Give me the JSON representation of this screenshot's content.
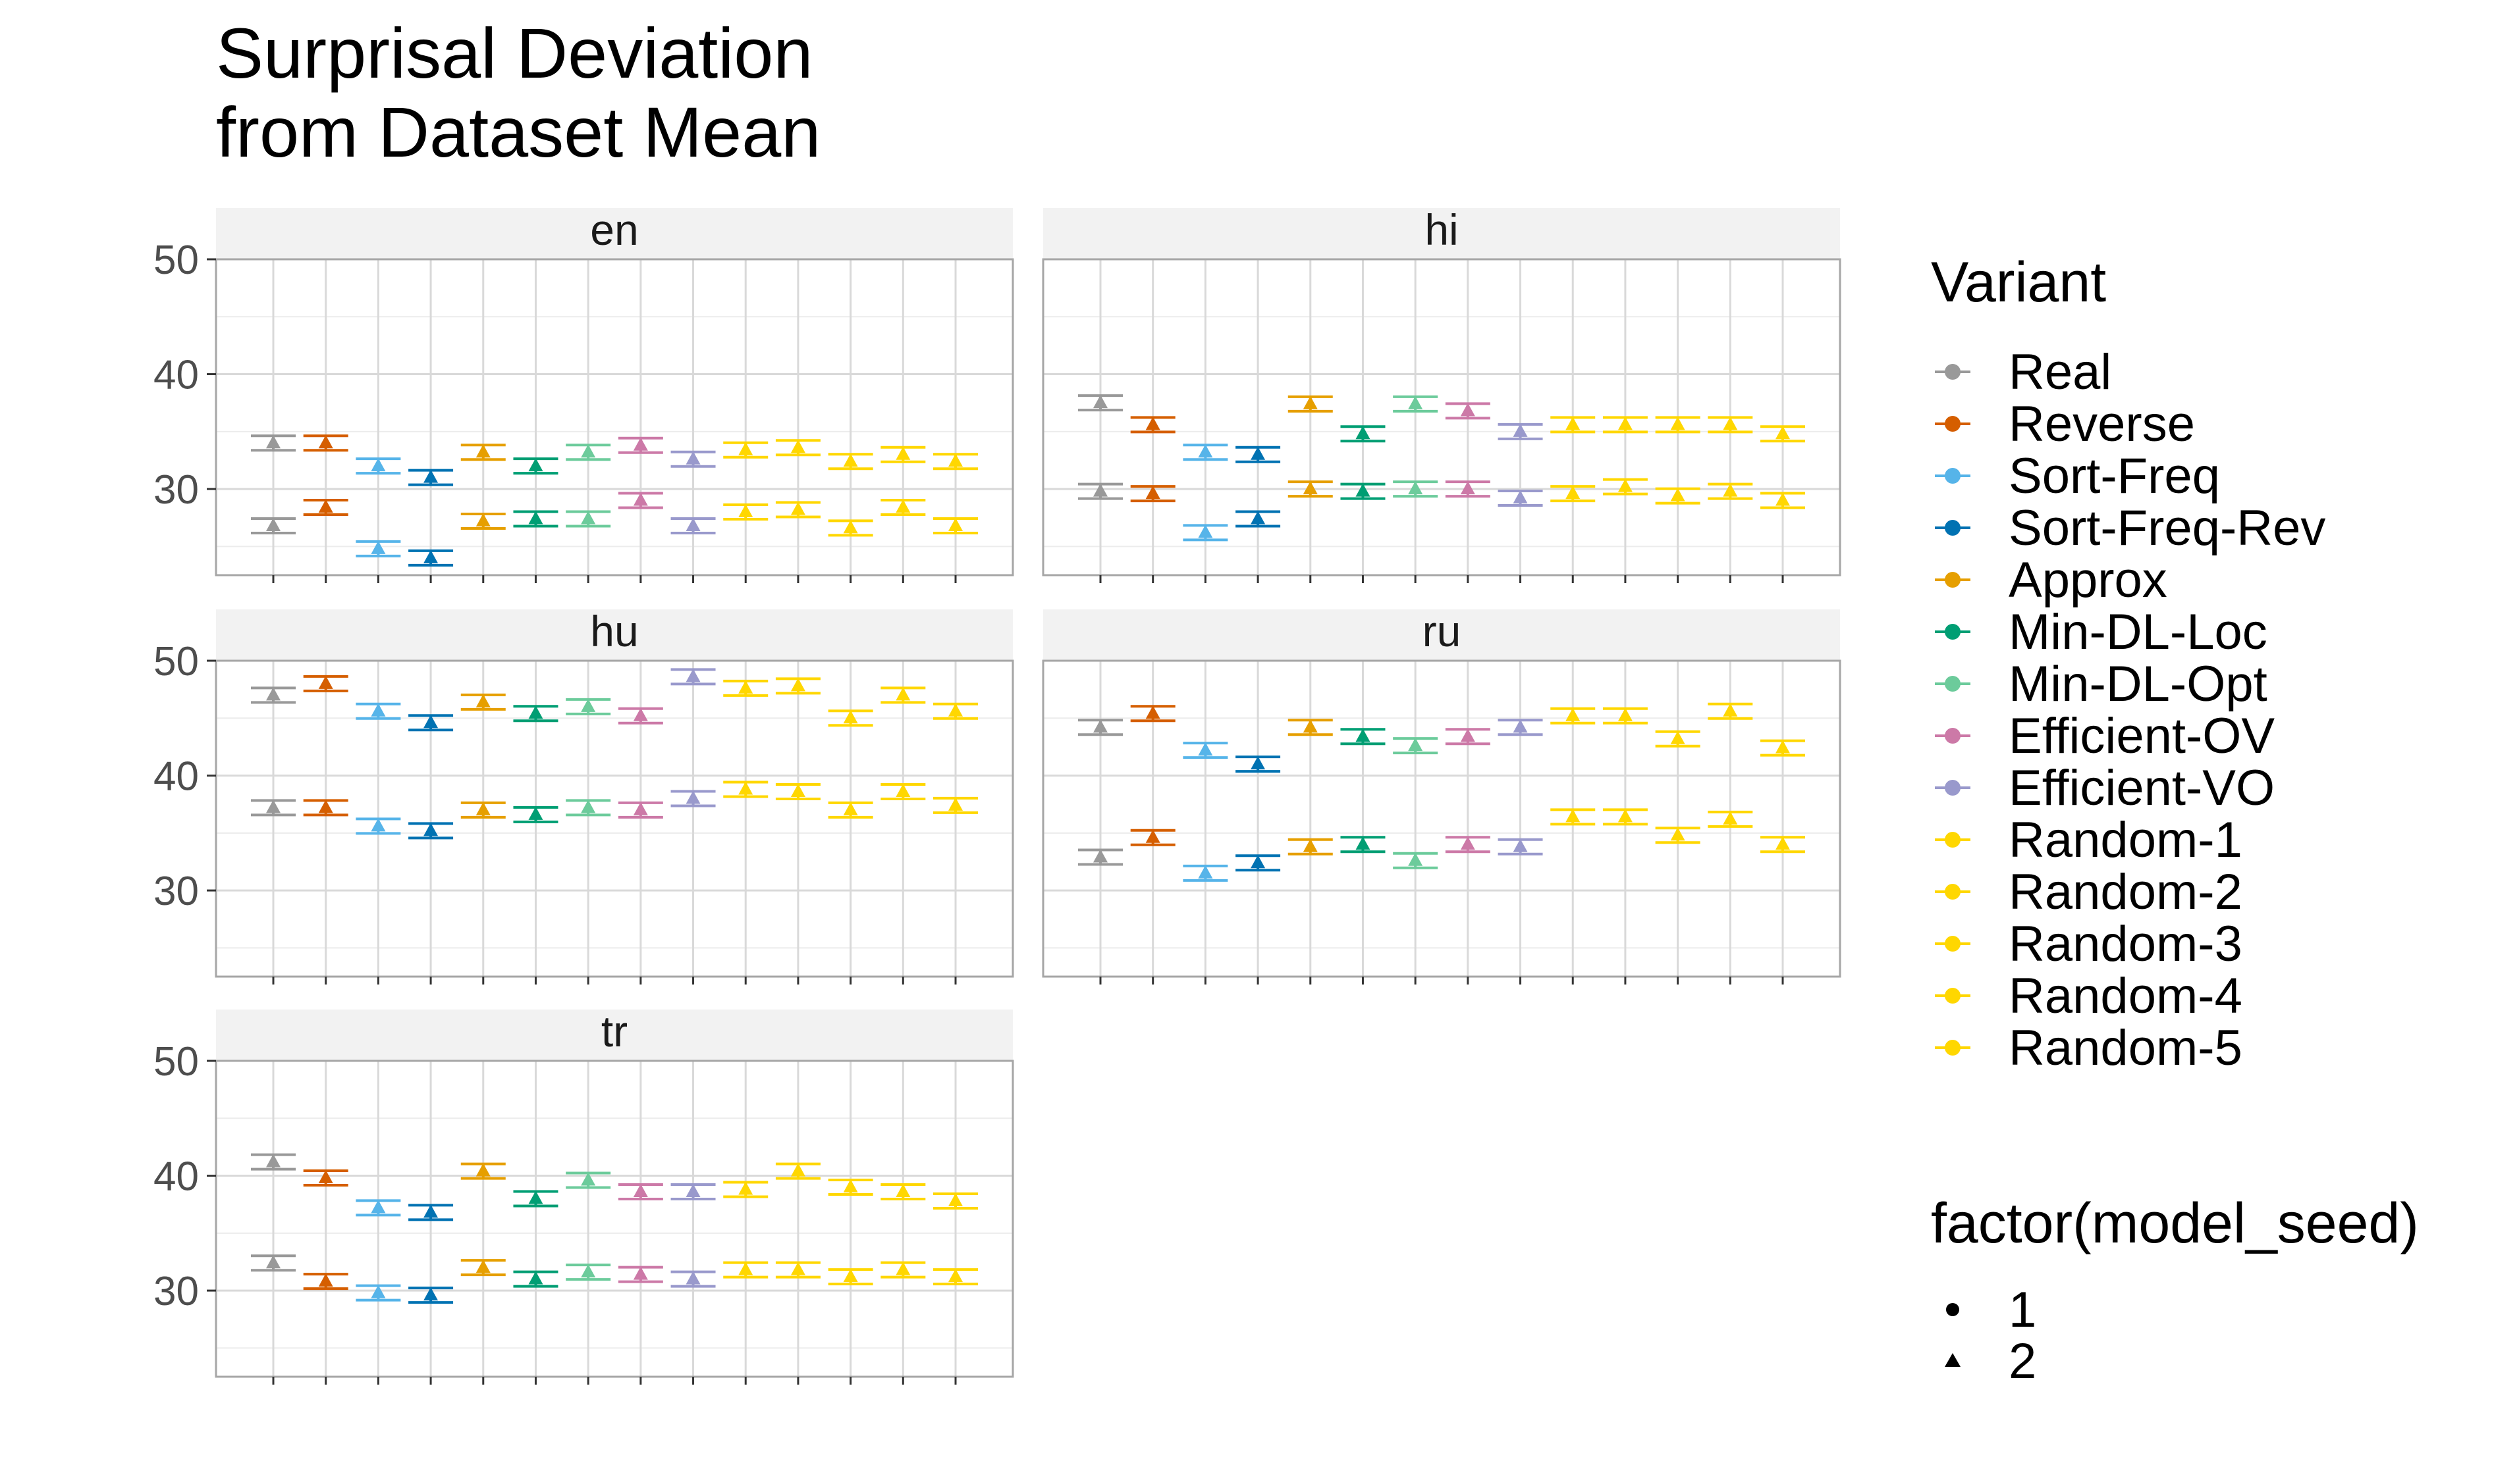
{
  "chart_data": {
    "type": "scatter",
    "subtype": "faceted-errorbar",
    "title_lines": [
      "Surprisal Deviation",
      "from Dataset Mean"
    ],
    "xlabel": "",
    "ylabel": "",
    "ylim": [
      22.5,
      50
    ],
    "yticks": [
      30,
      40,
      50
    ],
    "grid": true,
    "facet_labels": [
      "en",
      "hi",
      "hu",
      "ru",
      "tr"
    ],
    "categories": [
      "Real",
      "Reverse",
      "Sort-Freq",
      "Sort-Freq-Rev",
      "Approx",
      "Min-DL-Loc",
      "Min-DL-Opt",
      "Efficient-OV",
      "Efficient-VO",
      "Random-1",
      "Random-2",
      "Random-3",
      "Random-4",
      "Random-5"
    ],
    "colors": {
      "Real": "#999999",
      "Reverse": "#D55E00",
      "Sort-Freq": "#56B4E9",
      "Sort-Freq-Rev": "#0072B2",
      "Approx": "#E69F00",
      "Min-DL-Loc": "#009E73",
      "Min-DL-Opt": "#6CCB9B",
      "Efficient-OV": "#CC79A7",
      "Efficient-VO": "#9999CC",
      "Random-1": "#FFD700",
      "Random-2": "#FFD700",
      "Random-3": "#FFD700",
      "Random-4": "#FFD700",
      "Random-5": "#FFD700"
    },
    "panels": [
      {
        "lang": "en",
        "upper": [
          34.0,
          34.0,
          32.0,
          31.0,
          33.2,
          32.0,
          33.2,
          33.8,
          32.6,
          33.4,
          33.6,
          32.4,
          33.0,
          32.4
        ],
        "lower": [
          26.8,
          28.4,
          24.8,
          24.0,
          27.2,
          27.4,
          27.4,
          29.0,
          26.8,
          28.0,
          28.2,
          26.6,
          28.4,
          26.8
        ]
      },
      {
        "lang": "hi",
        "upper": [
          37.5,
          35.6,
          33.2,
          33.0,
          37.4,
          34.8,
          37.4,
          36.8,
          35.0,
          35.6,
          35.6,
          35.6,
          35.6,
          34.8
        ],
        "lower": [
          29.8,
          29.6,
          26.2,
          27.4,
          30.0,
          29.8,
          30.0,
          30.0,
          29.2,
          29.6,
          30.2,
          29.4,
          29.8,
          29.0
        ]
      },
      {
        "lang": "hu",
        "upper": [
          47.0,
          48.0,
          45.6,
          44.6,
          46.4,
          45.4,
          46.0,
          45.2,
          48.6,
          47.6,
          47.8,
          45.0,
          47.0,
          45.6
        ],
        "lower": [
          37.2,
          37.2,
          35.6,
          35.2,
          37.0,
          36.6,
          37.2,
          37.0,
          38.0,
          38.8,
          38.6,
          37.0,
          38.6,
          37.4
        ]
      },
      {
        "lang": "ru",
        "upper": [
          44.2,
          45.4,
          42.2,
          41.0,
          44.2,
          43.4,
          42.6,
          43.4,
          44.2,
          45.2,
          45.2,
          43.2,
          45.6,
          42.4
        ],
        "lower": [
          32.9,
          34.6,
          31.5,
          32.4,
          33.8,
          34.0,
          32.6,
          34.0,
          33.8,
          36.4,
          36.4,
          34.8,
          36.2,
          34.0
        ]
      },
      {
        "lang": "tr",
        "upper": [
          41.2,
          39.8,
          37.2,
          36.8,
          40.4,
          38.0,
          39.6,
          38.6,
          38.6,
          38.8,
          40.4,
          39.0,
          38.6,
          37.8
        ],
        "lower": [
          32.4,
          30.8,
          29.8,
          29.6,
          32.0,
          31.0,
          31.6,
          31.4,
          31.0,
          31.8,
          31.8,
          31.2,
          31.8,
          31.2
        ]
      }
    ],
    "legend": {
      "variant_title": "Variant",
      "variants": [
        "Real",
        "Reverse",
        "Sort-Freq",
        "Sort-Freq-Rev",
        "Approx",
        "Min-DL-Loc",
        "Min-DL-Opt",
        "Efficient-OV",
        "Efficient-VO",
        "Random-1",
        "Random-2",
        "Random-3",
        "Random-4",
        "Random-5"
      ],
      "shape_title": "factor(model_seed)",
      "shapes": [
        "1",
        "2"
      ],
      "placement": "right"
    }
  }
}
